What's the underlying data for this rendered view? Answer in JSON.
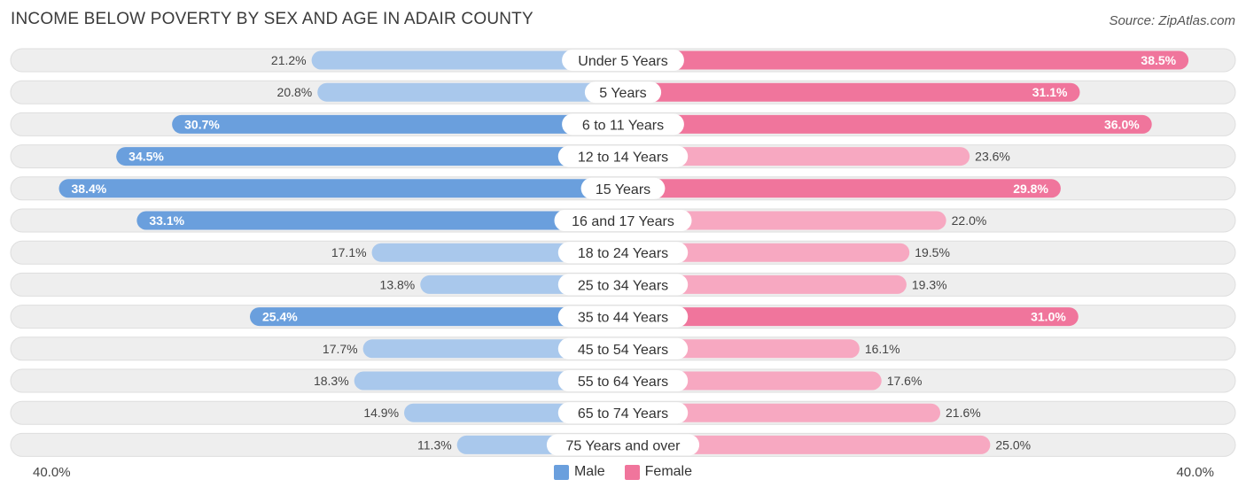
{
  "header": {
    "title": "INCOME BELOW POVERTY BY SEX AND AGE IN ADAIR COUNTY",
    "source": "Source: ZipAtlas.com"
  },
  "axis": {
    "left_label": "40.0%",
    "right_label": "40.0%"
  },
  "legend": {
    "male": "Male",
    "female": "Female"
  },
  "colors": {
    "male_strong": "#6a9fdd",
    "male_light": "#a9c8ec",
    "female_strong": "#f0759c",
    "female_light": "#f7a8c1",
    "track": "#eeeeee"
  },
  "chart_data": {
    "type": "bar",
    "orientation": "horizontal-diverging",
    "title": "INCOME BELOW POVERTY BY SEX AND AGE IN ADAIR COUNTY",
    "xlim": [
      -40,
      40
    ],
    "categories": [
      "Under 5 Years",
      "5 Years",
      "6 to 11 Years",
      "12 to 14 Years",
      "15 Years",
      "16 and 17 Years",
      "18 to 24 Years",
      "25 to 34 Years",
      "35 to 44 Years",
      "45 to 54 Years",
      "55 to 64 Years",
      "65 to 74 Years",
      "75 Years and over"
    ],
    "series": [
      {
        "name": "Male",
        "values": [
          21.2,
          20.8,
          30.7,
          34.5,
          38.4,
          33.1,
          17.1,
          13.8,
          25.4,
          17.7,
          18.3,
          14.9,
          11.3
        ],
        "labels": [
          "21.2%",
          "20.8%",
          "30.7%",
          "34.5%",
          "38.4%",
          "33.1%",
          "17.1%",
          "13.8%",
          "25.4%",
          "17.7%",
          "18.3%",
          "14.9%",
          "11.3%"
        ]
      },
      {
        "name": "Female",
        "values": [
          38.5,
          31.1,
          36.0,
          23.6,
          29.8,
          22.0,
          19.5,
          19.3,
          31.0,
          16.1,
          17.6,
          21.6,
          25.0
        ],
        "labels": [
          "38.5%",
          "31.1%",
          "36.0%",
          "23.6%",
          "29.8%",
          "22.0%",
          "19.5%",
          "19.3%",
          "31.0%",
          "16.1%",
          "17.6%",
          "21.6%",
          "25.0%"
        ]
      }
    ],
    "legend_position": "bottom-center"
  }
}
